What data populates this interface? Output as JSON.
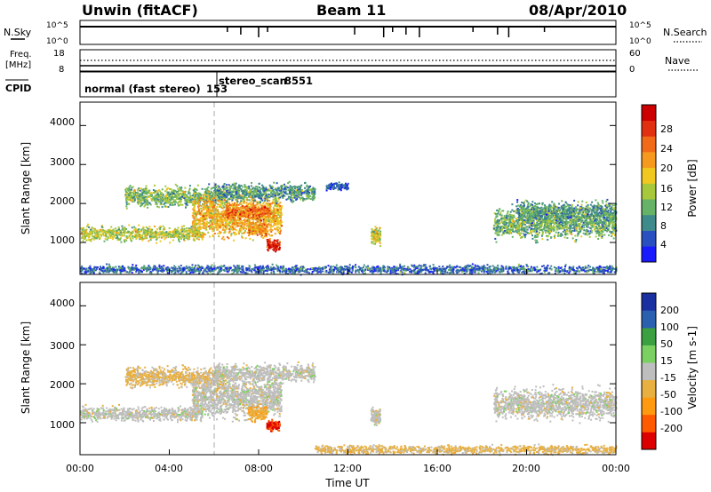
{
  "header": {
    "station": "Unwin (fitACF)",
    "beam": "Beam 11",
    "date": "08/Apr/2010"
  },
  "top_panels": {
    "nsky": {
      "label": "N.Sky",
      "ticks": [
        "10^5",
        "10^0"
      ],
      "right_label": "N.Search",
      "right_ticks": [
        "10^5",
        "10^0"
      ]
    },
    "freq": {
      "label_line1": "Freq.",
      "label_line2": "[MHz]",
      "ticks": [
        "18",
        "8"
      ],
      "right_label": "Nave",
      "right_ticks": [
        "60",
        "0"
      ]
    },
    "cpid": {
      "label": "CPID",
      "modes": [
        {
          "name": "normal (fast stereo)",
          "id": "153"
        },
        {
          "name": "stereo_scan",
          "id": "8551"
        }
      ]
    }
  },
  "power_panel": {
    "ylabel": "Slant Range [km]",
    "yticks": [
      "1000",
      "2000",
      "3000",
      "4000"
    ],
    "colorbar_label": "Power [dB]",
    "colorbar_ticks": [
      "4",
      "8",
      "12",
      "16",
      "20",
      "24",
      "28"
    ]
  },
  "velocity_panel": {
    "ylabel": "Slant Range [km]",
    "yticks": [
      "1000",
      "2000",
      "3000",
      "4000"
    ],
    "colorbar_label": "Velocity [m s-1]",
    "colorbar_ticks": [
      "-200",
      "-100",
      "-50",
      "-15",
      "15",
      "50",
      "100",
      "200"
    ]
  },
  "xaxis": {
    "label": "Time UT",
    "ticks": [
      "00:00",
      "04:00",
      "08:00",
      "12:00",
      "16:00",
      "20:00",
      "00:00"
    ]
  },
  "colors": {
    "power_scale": [
      "#1a1aff",
      "#2a4fc0",
      "#3f8a8a",
      "#66b266",
      "#a8c83c",
      "#f0c820",
      "#f59a1e",
      "#f06a18",
      "#e03010",
      "#cc0000"
    ],
    "velocity_scale": [
      "#dd0000",
      "#ff5a00",
      "#ff9a10",
      "#e8b040",
      "#bebebe",
      "#7ad060",
      "#3aa040",
      "#2a60b0",
      "#1a30a0"
    ],
    "cpid_marker": "#aaaaaa"
  },
  "chart_data": [
    {
      "type": "heatmap",
      "panel": "power",
      "title": "Beam 11",
      "xlabel": "Time UT",
      "ylabel": "Slant Range [km]",
      "xlim": [
        "00:00",
        "24:00"
      ],
      "ylim": [
        180,
        4600
      ],
      "zlabel": "Power [dB]",
      "zlim": [
        0,
        30
      ],
      "echo_regions": [
        {
          "t_start": "00:00",
          "t_end": "05:30",
          "range_center": 1250,
          "range_width": 250,
          "power": 14
        },
        {
          "t_start": "02:00",
          "t_end": "06:30",
          "range_center": 2200,
          "range_width": 350,
          "power": 11
        },
        {
          "t_start": "05:00",
          "t_end": "09:00",
          "range_center": 1700,
          "range_width": 700,
          "power": 18
        },
        {
          "t_start": "06:30",
          "t_end": "08:30",
          "range_center": 1800,
          "range_width": 250,
          "power": 22
        },
        {
          "t_start": "07:30",
          "t_end": "08:20",
          "range_center": 1350,
          "range_width": 250,
          "power": 20
        },
        {
          "t_start": "08:20",
          "t_end": "08:55",
          "range_center": 950,
          "range_width": 200,
          "power": 27
        },
        {
          "t_start": "06:00",
          "t_end": "10:30",
          "range_center": 2300,
          "range_width": 300,
          "power": 9
        },
        {
          "t_start": "11:00",
          "t_end": "12:00",
          "range_center": 2450,
          "range_width": 120,
          "power": 6
        },
        {
          "t_start": "13:00",
          "t_end": "13:25",
          "range_center": 1200,
          "range_width": 300,
          "power": 15
        },
        {
          "t_start": "18:30",
          "t_end": "23:59",
          "range_center": 1500,
          "range_width": 500,
          "power": 11
        },
        {
          "t_start": "19:30",
          "t_end": "23:59",
          "range_center": 1800,
          "range_width": 350,
          "power": 9
        },
        {
          "t_start": "00:00",
          "t_end": "23:59",
          "range_center": 330,
          "range_width": 150,
          "power": 6
        }
      ]
    },
    {
      "type": "heatmap",
      "panel": "velocity",
      "xlabel": "Time UT",
      "ylabel": "Slant Range [km]",
      "xlim": [
        "00:00",
        "24:00"
      ],
      "ylim": [
        180,
        4600
      ],
      "zlabel": "Velocity [m s-1]",
      "zlim": [
        -250,
        250
      ],
      "echo_regions": [
        {
          "t_start": "00:00",
          "t_end": "05:30",
          "range_center": 1250,
          "range_width": 250,
          "velocity": 0
        },
        {
          "t_start": "02:00",
          "t_end": "06:30",
          "range_center": 2200,
          "range_width": 350,
          "velocity": -40
        },
        {
          "t_start": "05:00",
          "t_end": "09:00",
          "range_center": 1700,
          "range_width": 700,
          "velocity": 0
        },
        {
          "t_start": "07:30",
          "t_end": "08:20",
          "range_center": 1250,
          "range_width": 250,
          "velocity": -80
        },
        {
          "t_start": "08:20",
          "t_end": "08:55",
          "range_center": 950,
          "range_width": 200,
          "velocity": -200
        },
        {
          "t_start": "06:00",
          "t_end": "10:30",
          "range_center": 2300,
          "range_width": 300,
          "velocity": 0
        },
        {
          "t_start": "13:00",
          "t_end": "13:25",
          "range_center": 1200,
          "range_width": 300,
          "velocity": 0
        },
        {
          "t_start": "18:30",
          "t_end": "23:59",
          "range_center": 1500,
          "range_width": 500,
          "velocity": 0
        },
        {
          "t_start": "10:30",
          "t_end": "23:59",
          "range_center": 330,
          "range_width": 150,
          "velocity": -40
        }
      ]
    },
    {
      "type": "line",
      "panel": "freq",
      "xlabel": "Time UT",
      "ylabel": "Freq. [MHz]",
      "series": [
        {
          "x": [
            "00:00",
            "06:00",
            "12:00",
            "18:00",
            "24:00"
          ],
          "y": [
            12,
            12,
            12,
            12,
            12
          ]
        }
      ]
    },
    {
      "type": "line",
      "panel": "nave",
      "xlabel": "Time UT",
      "ylabel": "Nave",
      "series": [
        {
          "x": [
            "00:00",
            "06:00",
            "12:00",
            "18:00",
            "24:00"
          ],
          "y": [
            28,
            28,
            28,
            28,
            28
          ]
        }
      ]
    }
  ]
}
